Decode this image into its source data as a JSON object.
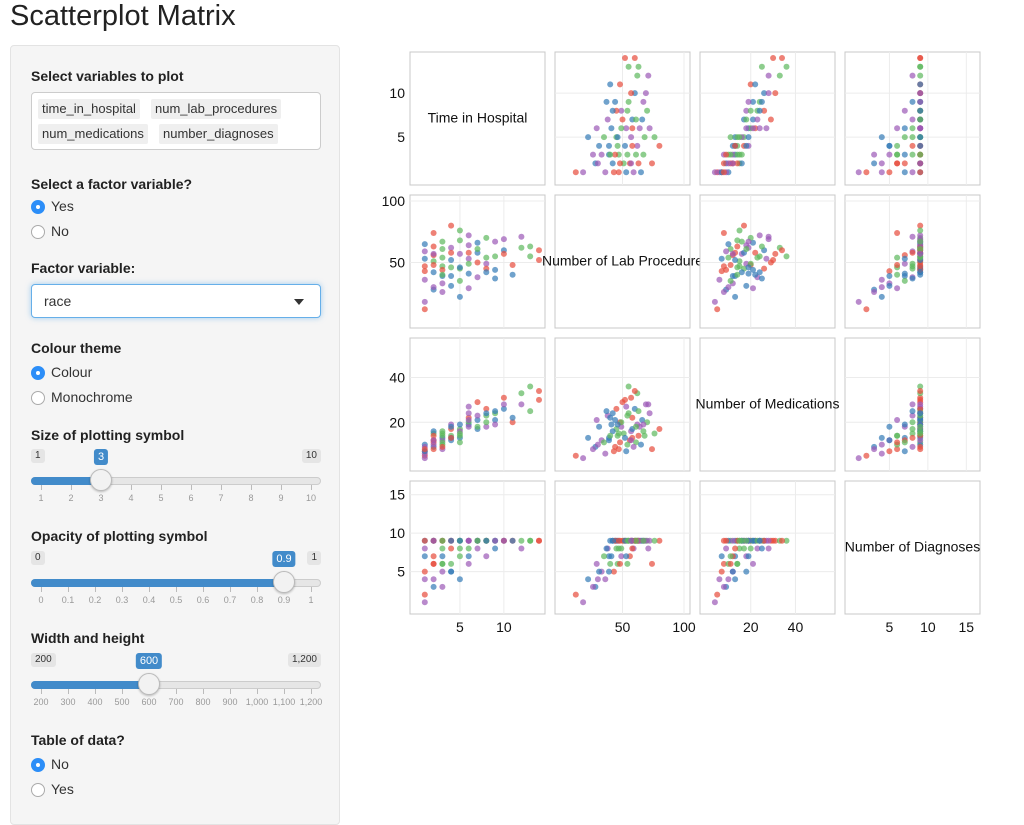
{
  "page_title": "Scatterplot Matrix",
  "sidebar": {
    "variables": {
      "label": "Select variables to plot",
      "chips": [
        "time_in_hospital",
        "num_lab_procedures",
        "num_medications",
        "number_diagnoses"
      ]
    },
    "factor_question": {
      "label": "Select a factor variable?",
      "options": [
        "Yes",
        "No"
      ],
      "selected": "Yes"
    },
    "factor_variable": {
      "label": "Factor variable:",
      "value": "race"
    },
    "colour_theme": {
      "label": "Colour theme",
      "options": [
        "Colour",
        "Monochrome"
      ],
      "selected": "Colour"
    },
    "size_slider": {
      "label": "Size of plotting symbol",
      "min_label": "1",
      "max_label": "10",
      "value_label": "3",
      "value": 3,
      "min": 1,
      "max": 10,
      "tick_labels": [
        "1",
        "2",
        "3",
        "4",
        "5",
        "6",
        "7",
        "8",
        "9",
        "10"
      ]
    },
    "opacity_slider": {
      "label": "Opacity of plotting symbol",
      "min_label": "0",
      "max_label": "1",
      "value_label": "0.9",
      "value": 0.9,
      "min": 0,
      "max": 1,
      "tick_labels": [
        "0",
        "0.1",
        "0.2",
        "0.3",
        "0.4",
        "0.5",
        "0.6",
        "0.7",
        "0.8",
        "0.9",
        "1"
      ]
    },
    "size_wh_slider": {
      "label": "Width and height",
      "min_label": "200",
      "max_label": "1,200",
      "value_label": "600",
      "value": 600,
      "min": 200,
      "max": 1200,
      "tick_labels": [
        "200",
        "300",
        "400",
        "500",
        "600",
        "700",
        "800",
        "900",
        "1,000",
        "1,100",
        "1,200"
      ]
    },
    "table_question": {
      "label": "Table of data?",
      "options": [
        "No",
        "Yes"
      ],
      "selected": "No"
    }
  },
  "colors": {
    "accent": "#428bca",
    "radio_selected": "#2c8ef8",
    "series": [
      "#e74c3c",
      "#5cb85c",
      "#337ab7",
      "#9b59b6"
    ]
  },
  "chart_data": {
    "type": "scatter",
    "kind": "scatterplot-matrix",
    "variables": [
      "Time in Hospital",
      "Number of Lab Procedures",
      "Number of Medications",
      "Number of Diagnoses"
    ],
    "diagonal_labels": [
      "Time in Hospital",
      "Number of Lab Procedure",
      "Number of Medications",
      "Number of Diagnoses"
    ],
    "ranges": [
      [
        0,
        14
      ],
      [
        0,
        100
      ],
      [
        0,
        55
      ],
      [
        0,
        16
      ]
    ],
    "y_ticks": [
      [
        5,
        10
      ],
      [
        50,
        100
      ],
      [
        20,
        40
      ],
      [
        5,
        10,
        15
      ]
    ],
    "y_tick_labels": [
      [
        "5",
        "10"
      ],
      [
        "50",
        "100"
      ],
      [
        "20",
        "40"
      ],
      [
        "5",
        "10",
        "15"
      ]
    ],
    "x_ticks": [
      [
        5,
        10
      ],
      [
        50,
        100
      ],
      [
        20,
        40
      ],
      [
        5,
        10,
        15
      ]
    ],
    "x_tick_labels": [
      [
        "5",
        "10"
      ],
      [
        "50",
        "100"
      ],
      [
        "20",
        "40"
      ],
      [
        "5",
        "10",
        "15"
      ]
    ],
    "grid": true,
    "point_size": 3,
    "opacity": 0.9,
    "points": [
      [
        1,
        43,
        7,
        5
      ],
      [
        2,
        51,
        15,
        9
      ],
      [
        3,
        39,
        13,
        7
      ],
      [
        4,
        62,
        19,
        9
      ],
      [
        5,
        45,
        17,
        8
      ],
      [
        6,
        58,
        22,
        9
      ],
      [
        7,
        66,
        21,
        9
      ],
      [
        8,
        49,
        18,
        7
      ],
      [
        9,
        55,
        24,
        9
      ],
      [
        10,
        60,
        26,
        9
      ],
      [
        11,
        48,
        20,
        9
      ],
      [
        12,
        71,
        28,
        8
      ],
      [
        13,
        63,
        25,
        9
      ],
      [
        14,
        52,
        30,
        9
      ],
      [
        2,
        28,
        9,
        3
      ],
      [
        3,
        33,
        12,
        5
      ],
      [
        1,
        12,
        5,
        2
      ],
      [
        4,
        46,
        14,
        6
      ],
      [
        5,
        57,
        16,
        9
      ],
      [
        6,
        41,
        19,
        7
      ],
      [
        3,
        61,
        11,
        9
      ],
      [
        2,
        74,
        8,
        6
      ],
      [
        1,
        65,
        10,
        9
      ],
      [
        7,
        38,
        23,
        8
      ],
      [
        8,
        70,
        20,
        9
      ],
      [
        5,
        22,
        13,
        4
      ],
      [
        4,
        80,
        17,
        9
      ],
      [
        6,
        53,
        27,
        9
      ],
      [
        9,
        44,
        21,
        9
      ],
      [
        3,
        47,
        15,
        8
      ],
      [
        2,
        56,
        12,
        7
      ],
      [
        1,
        36,
        6,
        4
      ],
      [
        4,
        31,
        18,
        5
      ],
      [
        5,
        68,
        14,
        9
      ],
      [
        6,
        72,
        24,
        9
      ],
      [
        7,
        50,
        29,
        9
      ],
      [
        3,
        54,
        10,
        6
      ],
      [
        2,
        42,
        16,
        9
      ],
      [
        1,
        59,
        9,
        8
      ],
      [
        10,
        57,
        31,
        9
      ],
      [
        11,
        40,
        22,
        9
      ],
      [
        12,
        62,
        33,
        9
      ],
      [
        8,
        45,
        26,
        9
      ],
      [
        9,
        67,
        19,
        9
      ],
      [
        5,
        35,
        11,
        7
      ],
      [
        4,
        52,
        13,
        9
      ],
      [
        3,
        26,
        8,
        3
      ],
      [
        2,
        63,
        14,
        9
      ],
      [
        6,
        49,
        20,
        8
      ],
      [
        7,
        58,
        17,
        9
      ],
      [
        1,
        18,
        4,
        1
      ],
      [
        3,
        44,
        9,
        9
      ],
      [
        5,
        76,
        15,
        9
      ],
      [
        4,
        39,
        12,
        5
      ],
      [
        2,
        48,
        11,
        6
      ],
      [
        6,
        64,
        18,
        9
      ],
      [
        8,
        54,
        23,
        9
      ],
      [
        9,
        37,
        25,
        8
      ],
      [
        10,
        69,
        28,
        9
      ],
      [
        13,
        55,
        36,
        9
      ],
      [
        14,
        60,
        34,
        9
      ],
      [
        1,
        53,
        7,
        7
      ],
      [
        2,
        30,
        10,
        4
      ],
      [
        3,
        67,
        16,
        9
      ],
      [
        4,
        58,
        13,
        8
      ],
      [
        5,
        46,
        19,
        9
      ],
      [
        6,
        29,
        21,
        6
      ],
      [
        7,
        61,
        18,
        9
      ],
      [
        8,
        42,
        24,
        9
      ],
      [
        1,
        47,
        8,
        9
      ],
      [
        2,
        57,
        12,
        9
      ],
      [
        3,
        40,
        14,
        6
      ]
    ],
    "groups": [
      0,
      1,
      2,
      3,
      1,
      0,
      2,
      3,
      1,
      2,
      0,
      3,
      1,
      0,
      2,
      3,
      0,
      1,
      3,
      2,
      1,
      0,
      2,
      3,
      1,
      2,
      0,
      3,
      2,
      1,
      0,
      3,
      2,
      1,
      3,
      0,
      1,
      2,
      3,
      0,
      2,
      1,
      0,
      3,
      1,
      2,
      3,
      0,
      1,
      2,
      3,
      0,
      1,
      2,
      0,
      3,
      1,
      2,
      3,
      1,
      0,
      2,
      3,
      1,
      0,
      2,
      3,
      1,
      2,
      0,
      3,
      1
    ]
  }
}
